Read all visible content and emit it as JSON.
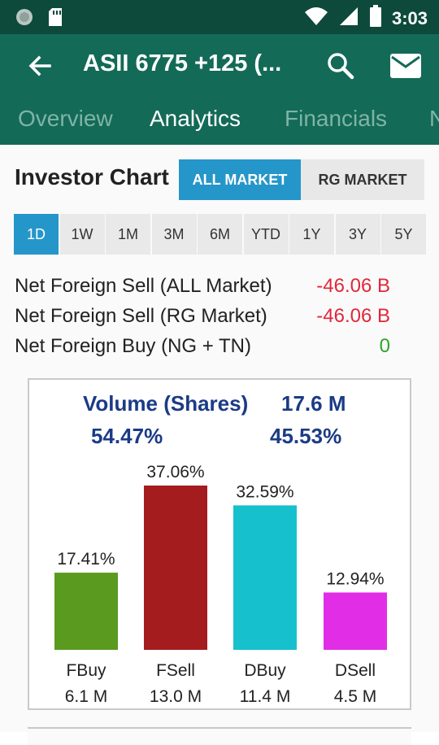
{
  "status_bar": {
    "time": "3:03",
    "icons": [
      "circle-notification-icon",
      "sd-card-icon",
      "wifi-icon",
      "signal-icon",
      "battery-icon"
    ]
  },
  "app_bar": {
    "title": "ASII  6775 +125 (...",
    "back_icon": "arrow-left-icon",
    "search_icon": "search-icon",
    "mail_icon": "mail-icon",
    "background_color": "#136a57"
  },
  "tabs": [
    {
      "label": "Overview",
      "active": false
    },
    {
      "label": "Analytics",
      "active": true
    },
    {
      "label": "Financials",
      "active": false
    },
    {
      "label": "N",
      "active": false
    }
  ],
  "section": {
    "title": "Investor Chart",
    "market_buttons": [
      {
        "label": "ALL MARKET",
        "active": true
      },
      {
        "label": "RG MARKET",
        "active": false
      }
    ],
    "accent_color": "#2596c9"
  },
  "periods": [
    {
      "label": "1D",
      "active": true
    },
    {
      "label": "1W",
      "active": false
    },
    {
      "label": "1M",
      "active": false
    },
    {
      "label": "3M",
      "active": false
    },
    {
      "label": "6M",
      "active": false
    },
    {
      "label": "YTD",
      "active": false
    },
    {
      "label": "1Y",
      "active": false
    },
    {
      "label": "3Y",
      "active": false
    },
    {
      "label": "5Y",
      "active": false
    }
  ],
  "stats": [
    {
      "label": "Net Foreign Sell (ALL Market)",
      "value": "-46.06 B"
    },
    {
      "label": "Net Foreign Sell (RG Market)",
      "value": "-46.06 B"
    },
    {
      "label": "Net Foreign Buy (NG + TN)",
      "value": "0"
    }
  ],
  "chart_data": {
    "type": "bar",
    "title": "Volume (Shares)",
    "title_value": "17.6 M",
    "left_percent": "54.47%",
    "right_percent": "45.53%",
    "categories": [
      "FBuy",
      "FSell",
      "DBuy",
      "DSell"
    ],
    "values": [
      17.41,
      37.06,
      32.59,
      12.94
    ],
    "value_labels": [
      "17.41%",
      "37.06%",
      "32.59%",
      "12.94%"
    ],
    "sub_labels": [
      "6.1 M",
      "13.0 M",
      "11.4 M",
      "4.5 M"
    ],
    "colors": [
      "#5a9a1f",
      "#a51c1e",
      "#17c0cd",
      "#e22de6"
    ],
    "ylim": [
      0,
      37.06
    ],
    "title_color": "#1b3b86"
  }
}
